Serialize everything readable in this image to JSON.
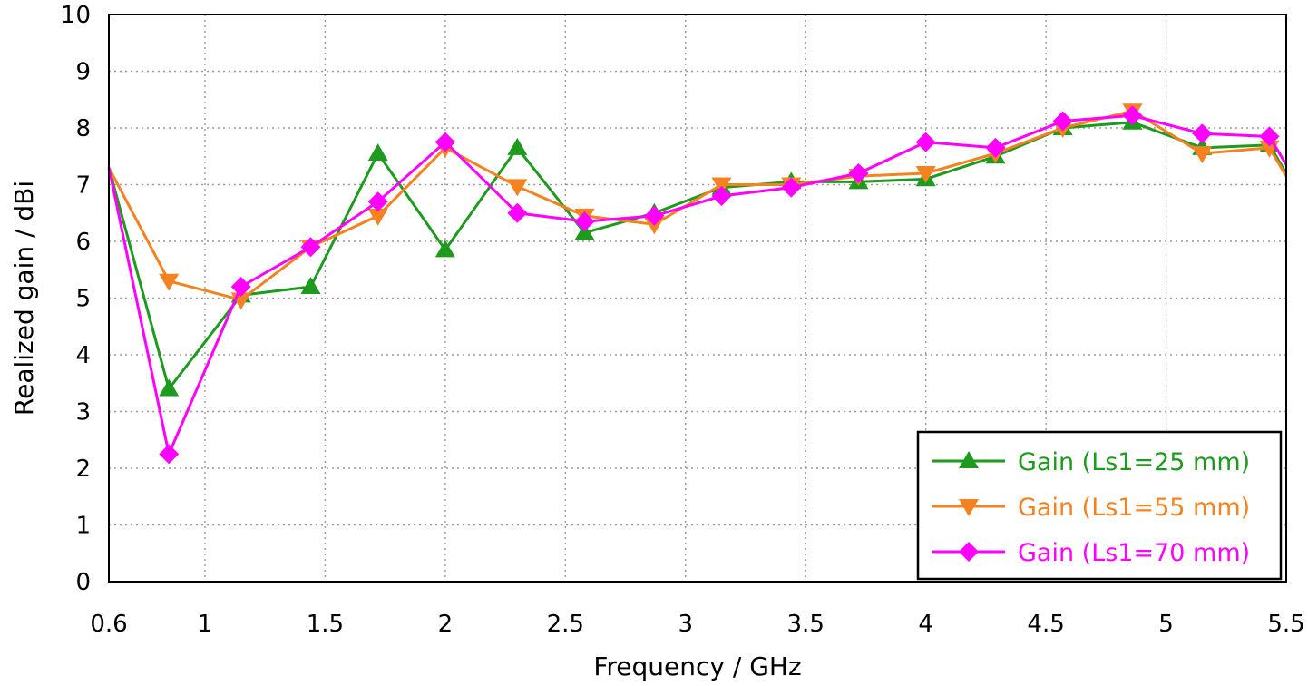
{
  "chart_data": {
    "type": "line",
    "title": "",
    "xlabel": "Frequency / GHz",
    "ylabel": "Realized gain / dBi",
    "xlim": [
      0.6,
      5.5
    ],
    "ylim": [
      0,
      10
    ],
    "x_ticks": [
      "0.6",
      "1",
      "1.5",
      "2",
      "2.5",
      "3",
      "3.5",
      "4",
      "4.5",
      "5",
      "5.5"
    ],
    "y_ticks": [
      "0",
      "1",
      "2",
      "3",
      "4",
      "5",
      "6",
      "7",
      "8",
      "9",
      "10"
    ],
    "grid": true,
    "legend_position": "bottom-right",
    "x": [
      0.6,
      0.85,
      1.15,
      1.44,
      1.72,
      2.0,
      2.3,
      2.58,
      2.87,
      3.15,
      3.44,
      3.72,
      4.0,
      4.29,
      4.57,
      4.86,
      5.15,
      5.43,
      5.5
    ],
    "series": [
      {
        "name": "Gain (Ls1=25 mm)",
        "color": "#1e9a1e",
        "marker": "triangle-up",
        "values": [
          7.3,
          3.4,
          5.05,
          5.2,
          7.55,
          5.85,
          7.65,
          6.15,
          6.5,
          6.95,
          7.05,
          7.05,
          7.1,
          7.5,
          8.0,
          8.1,
          7.65,
          7.7,
          7.2
        ]
      },
      {
        "name": "Gain (Ls1=55 mm)",
        "color": "#f58220",
        "marker": "triangle-down",
        "values": [
          7.3,
          5.3,
          4.97,
          5.9,
          6.45,
          7.65,
          6.97,
          6.45,
          6.3,
          7.0,
          7.0,
          7.15,
          7.2,
          7.55,
          8.0,
          8.3,
          7.55,
          7.65,
          7.15
        ]
      },
      {
        "name": "Gain (Ls1=70 mm)",
        "color": "#ff00ff",
        "marker": "diamond",
        "values": [
          7.3,
          2.25,
          5.2,
          5.9,
          6.7,
          7.75,
          6.5,
          6.35,
          6.45,
          6.8,
          6.95,
          7.2,
          7.75,
          7.65,
          8.12,
          8.22,
          7.9,
          7.85,
          7.35
        ]
      }
    ]
  }
}
